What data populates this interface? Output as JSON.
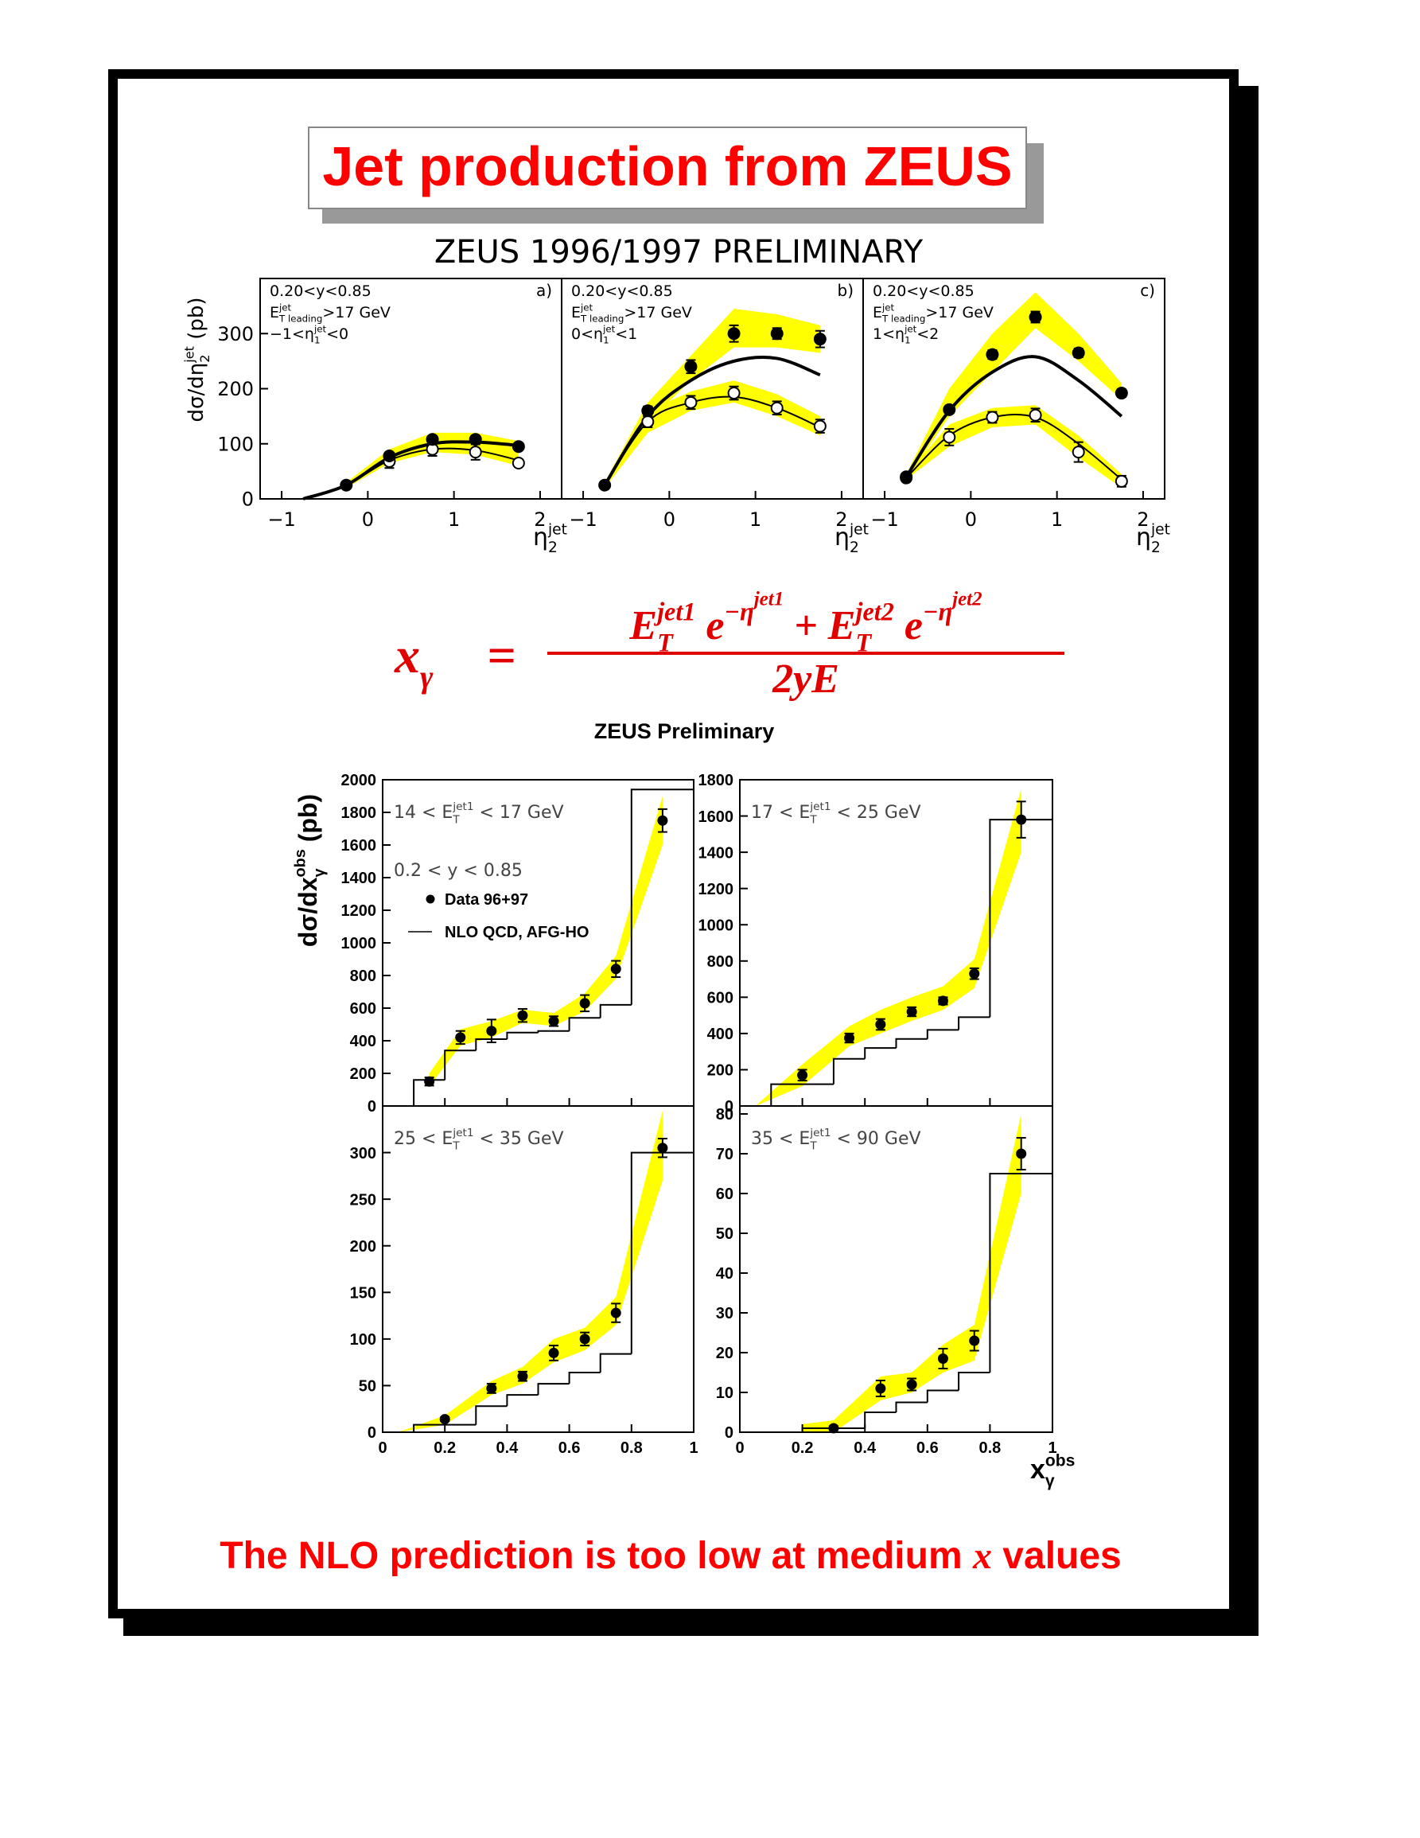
{
  "page": {
    "title": "Jet production from ZEUS",
    "footer": {
      "pre": "The NLO prediction is too low at medium ",
      "base": "x",
      "rest": " values"
    }
  },
  "formula": {
    "lhs": {
      "base": "x",
      "sub": "γ"
    },
    "eq": "=",
    "numerator": [
      {
        "base": "E",
        "sup": "jet1",
        "sub": "T"
      },
      {
        "base": " e",
        "sup": "−η",
        "supsup": "jet1"
      },
      {
        "base": " + E",
        "sup": "jet2",
        "sub": "T"
      },
      {
        "base": " e",
        "sup": "−η",
        "supsup": "jet2"
      }
    ],
    "denominator": "2yE"
  },
  "chart_data": [
    {
      "type": "line",
      "suptitle": "ZEUS 1996/1997 PRELIMINARY",
      "band_color": "#ffff00",
      "color": "#000000",
      "ylabel": {
        "pre": "dσ/dη",
        "sup": "jet",
        "sub": "2",
        "rest": " (pb)"
      },
      "xlabel": {
        "base": "η",
        "sup": "jet",
        "sub": "2"
      },
      "labels": [
        "0.20<y<0.85",
        {
          "base": "E",
          "sup": "jet",
          "sub": "T leading",
          "rest": ">17 GeV"
        },
        {
          "pre": "−1<η",
          "sup": "jet",
          "sub": "1",
          "rest": "<0"
        }
      ],
      "panel": "a)",
      "xlim": [
        -1.25,
        2.25
      ],
      "ylim": [
        0,
        400
      ],
      "xticks": [
        {
          "value": -1,
          "label": "−1"
        },
        0,
        1,
        2
      ],
      "yticks": [
        0,
        100,
        200,
        300
      ],
      "series": [
        {
          "kind": "band",
          "x": [
            -0.25,
            0.25,
            0.75,
            1.25,
            1.75
          ],
          "low": [
            20,
            65,
            85,
            80,
            60
          ],
          "high": [
            30,
            90,
            120,
            120,
            105
          ]
        },
        {
          "kind": "curve",
          "style": "thick",
          "x": [
            -0.75,
            -0.25,
            0.25,
            0.75,
            1.25,
            1.75
          ],
          "values": [
            0,
            25,
            75,
            100,
            103,
            97
          ]
        },
        {
          "kind": "curve",
          "style": "thin",
          "x": [
            -0.75,
            -0.25,
            0.25,
            0.75,
            1.25,
            1.75
          ],
          "values": [
            0,
            25,
            70,
            90,
            88,
            70
          ]
        },
        {
          "kind": "points",
          "marker": "open",
          "x": [
            0.25,
            0.75,
            1.25,
            1.75
          ],
          "values": [
            68,
            90,
            85,
            65
          ],
          "errors": [
            12,
            12,
            14,
            6
          ]
        },
        {
          "kind": "points",
          "marker": "filled",
          "x": [
            -0.25,
            0.25,
            0.75,
            1.25,
            1.75
          ],
          "values": [
            25,
            78,
            108,
            108,
            95
          ],
          "errors": [
            4,
            6,
            6,
            6,
            5
          ]
        }
      ]
    },
    {
      "type": "line",
      "band_color": "#ffff00",
      "color": "#000000",
      "xlabel": {
        "base": "η",
        "sup": "jet",
        "sub": "2"
      },
      "labels": [
        "0.20<y<0.85",
        {
          "base": "E",
          "sup": "jet",
          "sub": "T leading",
          "rest": ">17 GeV"
        },
        {
          "pre": "0<η",
          "sup": "jet",
          "sub": "1",
          "rest": "<1"
        }
      ],
      "panel": "b)",
      "xlim": [
        -1.25,
        2.25
      ],
      "ylim": [
        0,
        400
      ],
      "xticks": [
        {
          "value": -1,
          "label": "−1"
        },
        0,
        1,
        2
      ],
      "series": [
        {
          "kind": "band",
          "x": [
            -0.75,
            -0.25,
            0.25,
            0.75,
            1.25,
            1.75
          ],
          "low": [
            20,
            140,
            215,
            275,
            275,
            265
          ],
          "high": [
            30,
            175,
            260,
            345,
            335,
            315
          ]
        },
        {
          "kind": "band",
          "x": [
            -0.75,
            -0.25,
            0.25,
            0.75,
            1.25,
            1.75
          ],
          "low": [
            20,
            120,
            160,
            175,
            150,
            115
          ],
          "high": [
            30,
            160,
            195,
            215,
            190,
            150
          ]
        },
        {
          "kind": "curve",
          "style": "thick",
          "x": [
            -0.75,
            -0.25,
            0.25,
            0.75,
            1.25,
            1.75
          ],
          "values": [
            25,
            150,
            215,
            250,
            255,
            225
          ]
        },
        {
          "kind": "curve",
          "style": "thin",
          "x": [
            -0.75,
            -0.25,
            0.25,
            0.75,
            1.25,
            1.75
          ],
          "values": [
            25,
            140,
            175,
            185,
            165,
            130
          ]
        },
        {
          "kind": "points",
          "marker": "open",
          "x": [
            -0.25,
            0.25,
            0.75,
            1.25,
            1.75
          ],
          "values": [
            140,
            175,
            192,
            165,
            132
          ],
          "errors": [
            10,
            12,
            12,
            12,
            12
          ]
        },
        {
          "kind": "points",
          "marker": "filled",
          "x": [
            -0.75,
            -0.25,
            0.25,
            0.75,
            1.25,
            1.75
          ],
          "values": [
            25,
            160,
            240,
            300,
            300,
            290
          ],
          "errors": [
            5,
            8,
            12,
            15,
            10,
            15
          ]
        }
      ]
    },
    {
      "type": "line",
      "band_color": "#ffff00",
      "color": "#000000",
      "xlabel": {
        "base": "η",
        "sup": "jet",
        "sub": "2"
      },
      "labels": [
        "0.20<y<0.85",
        {
          "base": "E",
          "sup": "jet",
          "sub": "T leading",
          "rest": ">17 GeV"
        },
        {
          "pre": "1<η",
          "sup": "jet",
          "sub": "1",
          "rest": "<2"
        }
      ],
      "panel": "c)",
      "xlim": [
        -1.25,
        2.25
      ],
      "ylim": [
        0,
        400
      ],
      "xticks": [
        {
          "value": -1,
          "label": "−1"
        },
        0,
        1,
        2
      ],
      "series": [
        {
          "kind": "band",
          "x": [
            -0.75,
            -0.25,
            0.25,
            0.75,
            1.25,
            1.75
          ],
          "low": [
            35,
            150,
            230,
            310,
            250,
            180
          ],
          "high": [
            45,
            200,
            300,
            375,
            300,
            210
          ]
        },
        {
          "kind": "band",
          "x": [
            -0.75,
            -0.25,
            0.25,
            0.75,
            1.25,
            1.75
          ],
          "low": [
            35,
            95,
            130,
            135,
            75,
            20
          ],
          "high": [
            45,
            135,
            165,
            170,
            115,
            45
          ]
        },
        {
          "kind": "curve",
          "style": "thick",
          "x": [
            -0.75,
            -0.25,
            0.25,
            0.75,
            1.25,
            1.75
          ],
          "values": [
            40,
            160,
            230,
            258,
            215,
            150
          ]
        },
        {
          "kind": "curve",
          "style": "thin",
          "x": [
            -0.75,
            -0.25,
            0.25,
            0.75,
            1.25,
            1.75
          ],
          "values": [
            38,
            115,
            148,
            148,
            100,
            35
          ]
        },
        {
          "kind": "points",
          "marker": "open",
          "x": [
            -0.75,
            -0.25,
            0.25,
            0.75,
            1.25,
            1.75
          ],
          "values": [
            38,
            112,
            148,
            152,
            85,
            32
          ],
          "errors": [
            5,
            15,
            10,
            12,
            18,
            10
          ]
        },
        {
          "kind": "points",
          "marker": "filled",
          "x": [
            -0.75,
            -0.25,
            0.25,
            0.75,
            1.25,
            1.75
          ],
          "values": [
            40,
            162,
            262,
            330,
            265,
            192
          ],
          "errors": [
            5,
            6,
            8,
            10,
            8,
            7
          ]
        }
      ]
    },
    {
      "type": "histogram",
      "suptitle": "ZEUS Preliminary",
      "band_color": "#ffff00",
      "color": "#000000",
      "ylabel": {
        "pre": "dσ/dx",
        "sup": "obs",
        "sub": "γ",
        "rest": " (pb)"
      },
      "labels": [
        {
          "pre": "14 < E",
          "sup": "jet1",
          "sub": "T",
          "rest": " < 17 GeV"
        },
        "0.2 < y < 0.85"
      ],
      "xlim": [
        0,
        1
      ],
      "ylim": [
        0,
        2000
      ],
      "xtick_labels": false,
      "xticks": [
        0,
        0.2,
        0.4,
        0.6,
        0.8,
        1
      ],
      "yticks": [
        0,
        200,
        400,
        600,
        800,
        1000,
        1200,
        1400,
        1600,
        1800,
        2000
      ],
      "histogram": {
        "name": "NLO QCD, AFG-HO",
        "bins": [
          0.1,
          0.2,
          0.3,
          0.4,
          0.5,
          0.6,
          0.7,
          0.8,
          1
        ],
        "values": [
          160,
          340,
          410,
          450,
          460,
          540,
          620,
          1940
        ]
      },
      "points": {
        "name": "Data 96+97",
        "x": [
          0.15,
          0.25,
          0.35,
          0.45,
          0.55,
          0.65,
          0.75,
          0.9
        ],
        "values": [
          150,
          420,
          460,
          555,
          520,
          630,
          840,
          1750
        ],
        "errors": [
          25,
          40,
          70,
          40,
          30,
          50,
          50,
          70
        ]
      },
      "band": {
        "x": [
          0.15,
          0.25,
          0.35,
          0.45,
          0.55,
          0.65,
          0.75,
          0.9
        ],
        "low": [
          120,
          370,
          420,
          510,
          490,
          580,
          780,
          1600
        ],
        "high": [
          200,
          470,
          520,
          590,
          570,
          690,
          920,
          1900
        ]
      }
    },
    {
      "type": "histogram",
      "band_color": "#ffff00",
      "color": "#000000",
      "labels": [
        {
          "pre": "17 < E",
          "sup": "jet1",
          "sub": "T",
          "rest": " < 25 GeV"
        }
      ],
      "xlim": [
        0,
        1
      ],
      "ylim": [
        0,
        1800
      ],
      "xtick_labels": false,
      "xticks": [
        0,
        0.2,
        0.4,
        0.6,
        0.8,
        1
      ],
      "yticks": [
        0,
        200,
        400,
        600,
        800,
        1000,
        1200,
        1400,
        1600,
        1800
      ],
      "histogram": {
        "bins": [
          0.1,
          0.3,
          0.4,
          0.5,
          0.6,
          0.7,
          0.8,
          1
        ],
        "values": [
          120,
          260,
          320,
          370,
          420,
          490,
          1580
        ]
      },
      "points": {
        "x": [
          0.2,
          0.35,
          0.45,
          0.55,
          0.65,
          0.75,
          0.9
        ],
        "values": [
          170,
          375,
          450,
          520,
          580,
          730,
          1580
        ],
        "errors": [
          30,
          25,
          30,
          25,
          20,
          30,
          100
        ]
      },
      "band": {
        "x": [
          0.05,
          0.2,
          0.35,
          0.45,
          0.55,
          0.65,
          0.75,
          0.9
        ],
        "low": [
          0,
          110,
          330,
          400,
          470,
          530,
          650,
          1400
        ],
        "high": [
          0,
          230,
          440,
          530,
          600,
          660,
          810,
          1750
        ]
      }
    },
    {
      "type": "histogram",
      "band_color": "#ffff00",
      "color": "#000000",
      "labels": [
        {
          "pre": "25 < E",
          "sup": "jet1",
          "sub": "T",
          "rest": " < 35 GeV"
        }
      ],
      "xlim": [
        0,
        1
      ],
      "ylim": [
        0,
        350
      ],
      "xticks": [
        0,
        0.2,
        0.4,
        0.6,
        0.8,
        1
      ],
      "yticks": [
        0,
        50,
        100,
        150,
        200,
        250,
        300
      ],
      "histogram": {
        "bins": [
          0.1,
          0.3,
          0.4,
          0.5,
          0.6,
          0.7,
          0.8,
          1
        ],
        "values": [
          8,
          28,
          40,
          52,
          64,
          84,
          300
        ]
      },
      "points": {
        "x": [
          0.2,
          0.35,
          0.45,
          0.55,
          0.65,
          0.75,
          0.9
        ],
        "values": [
          14,
          47,
          60,
          85,
          100,
          128,
          305
        ],
        "errors": [
          2,
          5,
          5,
          8,
          7,
          10,
          10
        ]
      },
      "band": {
        "x": [
          0.05,
          0.2,
          0.35,
          0.45,
          0.55,
          0.65,
          0.75,
          0.9
        ],
        "low": [
          0,
          8,
          40,
          52,
          75,
          88,
          115,
          270
        ],
        "high": [
          0,
          18,
          55,
          70,
          100,
          112,
          145,
          345
        ]
      }
    },
    {
      "type": "histogram",
      "band_color": "#ffff00",
      "color": "#000000",
      "xlabel": {
        "base": "x",
        "sup": "obs",
        "sub": "γ"
      },
      "labels": [
        {
          "pre": "35 < E",
          "sup": "jet1",
          "sub": "T",
          "rest": " < 90 GeV"
        }
      ],
      "xlim": [
        0,
        1
      ],
      "ylim": [
        0,
        82
      ],
      "xticks": [
        0,
        0.2,
        0.4,
        0.6,
        0.8,
        1
      ],
      "yticks": [
        0,
        10,
        20,
        30,
        40,
        50,
        60,
        70,
        80
      ],
      "histogram": {
        "bins": [
          0.2,
          0.3,
          0.4,
          0.5,
          0.6,
          0.7,
          0.8,
          1
        ],
        "values": [
          1,
          1,
          5,
          7.5,
          10.5,
          15,
          65
        ]
      },
      "points": {
        "x": [
          0.3,
          0.45,
          0.55,
          0.65,
          0.75,
          0.9
        ],
        "values": [
          1,
          11,
          12,
          18.5,
          23,
          70
        ],
        "errors": [
          0.5,
          2,
          1.5,
          2.5,
          2.5,
          4
        ]
      },
      "band": {
        "x": [
          0.2,
          0.3,
          0.45,
          0.55,
          0.65,
          0.75,
          0.9
        ],
        "low": [
          0,
          0,
          8,
          10,
          15,
          18,
          60
        ],
        "high": [
          2,
          3,
          14,
          15,
          22,
          27,
          80
        ]
      }
    }
  ]
}
